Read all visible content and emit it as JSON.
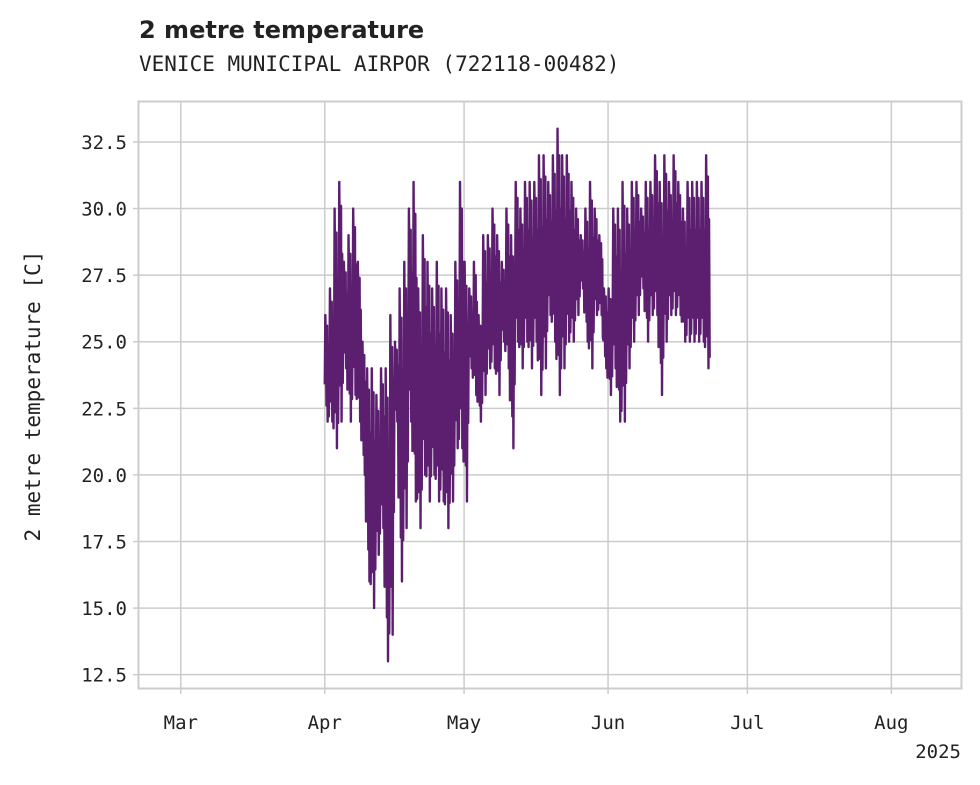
{
  "chart_data": {
    "type": "line",
    "title": "2 metre temperature",
    "subtitle": "VENICE MUNICIPAL AIRPOR (722118-00482)",
    "ylabel": "2 metre temperature [C]",
    "xlabel": "",
    "year_label": "2025",
    "ylim": [
      12.0,
      34.0
    ],
    "xlim": [
      "2025-02-20",
      "2025-08-16"
    ],
    "yticks": [
      12.5,
      15.0,
      17.5,
      20.0,
      22.5,
      25.0,
      27.5,
      30.0,
      32.5
    ],
    "ytick_labels": [
      "12.5",
      "15.0",
      "17.5",
      "20.0",
      "22.5",
      "25.0",
      "27.5",
      "30.0",
      "32.5"
    ],
    "xticks": [
      "2025-03-01",
      "2025-04-01",
      "2025-05-01",
      "2025-06-01",
      "2025-07-01",
      "2025-08-01"
    ],
    "xtick_labels": [
      "Mar",
      "Apr",
      "May",
      "Jun",
      "Jul",
      "Aug"
    ],
    "grid": true,
    "line_color": "#5c1f70",
    "series": [
      {
        "name": "",
        "color": "#5c1f70",
        "x": [
          "2025-04-01",
          "2025-04-02",
          "2025-04-03",
          "2025-04-04",
          "2025-04-05",
          "2025-04-06",
          "2025-04-07",
          "2025-04-08",
          "2025-04-09",
          "2025-04-10",
          "2025-04-11",
          "2025-04-12",
          "2025-04-13",
          "2025-04-14",
          "2025-04-15",
          "2025-04-16",
          "2025-04-17",
          "2025-04-18",
          "2025-04-19",
          "2025-04-20",
          "2025-04-21",
          "2025-04-22",
          "2025-04-23",
          "2025-04-24",
          "2025-04-25",
          "2025-04-26",
          "2025-04-27",
          "2025-04-28",
          "2025-04-29",
          "2025-04-30",
          "2025-05-01",
          "2025-05-02",
          "2025-05-03",
          "2025-05-04",
          "2025-05-05",
          "2025-05-06",
          "2025-05-07",
          "2025-05-08",
          "2025-05-09",
          "2025-05-10",
          "2025-05-11",
          "2025-05-12",
          "2025-05-13",
          "2025-05-14",
          "2025-05-15",
          "2025-05-16",
          "2025-05-17",
          "2025-05-18",
          "2025-05-19",
          "2025-05-20",
          "2025-05-21",
          "2025-05-22",
          "2025-05-23",
          "2025-05-24",
          "2025-05-25",
          "2025-05-26",
          "2025-05-27",
          "2025-05-28",
          "2025-05-29",
          "2025-05-30",
          "2025-05-31",
          "2025-06-01",
          "2025-06-02",
          "2025-06-03",
          "2025-06-04",
          "2025-06-05",
          "2025-06-06",
          "2025-06-07",
          "2025-06-08",
          "2025-06-09",
          "2025-06-10",
          "2025-06-11",
          "2025-06-12",
          "2025-06-13",
          "2025-06-14",
          "2025-06-15",
          "2025-06-16",
          "2025-06-17",
          "2025-06-18",
          "2025-06-19",
          "2025-06-20",
          "2025-06-21",
          "2025-06-22"
        ],
        "low": [
          22.0,
          22.0,
          21.0,
          22.0,
          24.0,
          22.0,
          23.0,
          22.0,
          20.0,
          16.0,
          15.0,
          17.0,
          18.0,
          13.0,
          14.0,
          22.0,
          16.0,
          18.0,
          22.0,
          19.0,
          18.0,
          20.0,
          19.0,
          20.0,
          19.0,
          19.0,
          18.0,
          19.0,
          21.0,
          21.0,
          19.0,
          24.0,
          23.0,
          22.0,
          23.0,
          24.0,
          24.0,
          23.0,
          25.0,
          24.0,
          21.0,
          25.0,
          24.0,
          25.0,
          24.0,
          25.0,
          23.0,
          24.0,
          26.0,
          25.0,
          23.0,
          24.0,
          25.0,
          25.0,
          26.0,
          27.0,
          25.0,
          24.0,
          26.0,
          26.0,
          24.0,
          23.0,
          24.0,
          22.0,
          22.0,
          24.0,
          25.0,
          26.0,
          27.0,
          25.0,
          26.0,
          26.0,
          23.0,
          25.0,
          26.0,
          26.0,
          26.0,
          25.0,
          25.0,
          25.0,
          25.0,
          25.0,
          24.0
        ],
        "high": [
          26.0,
          27.0,
          30.0,
          31.0,
          28.0,
          29.0,
          30.0,
          28.0,
          25.0,
          24.0,
          24.0,
          23.0,
          24.0,
          24.0,
          26.0,
          25.0,
          27.0,
          28.0,
          30.0,
          31.0,
          27.0,
          29.0,
          28.0,
          27.0,
          28.0,
          27.0,
          27.0,
          26.0,
          28.0,
          31.0,
          28.0,
          27.0,
          28.0,
          26.0,
          29.0,
          29.0,
          30.0,
          29.0,
          28.0,
          30.0,
          29.0,
          31.0,
          30.0,
          31.0,
          31.0,
          31.0,
          32.0,
          32.0,
          31.0,
          32.0,
          33.0,
          32.0,
          32.0,
          31.0,
          30.0,
          29.0,
          30.0,
          31.0,
          30.0,
          29.0,
          27.0,
          27.0,
          30.0,
          30.0,
          31.0,
          30.0,
          31.0,
          31.0,
          30.0,
          31.0,
          31.0,
          32.0,
          31.0,
          32.0,
          31.0,
          32.0,
          31.0,
          30.0,
          31.0,
          31.0,
          31.0,
          31.0,
          32.0
        ]
      }
    ]
  }
}
